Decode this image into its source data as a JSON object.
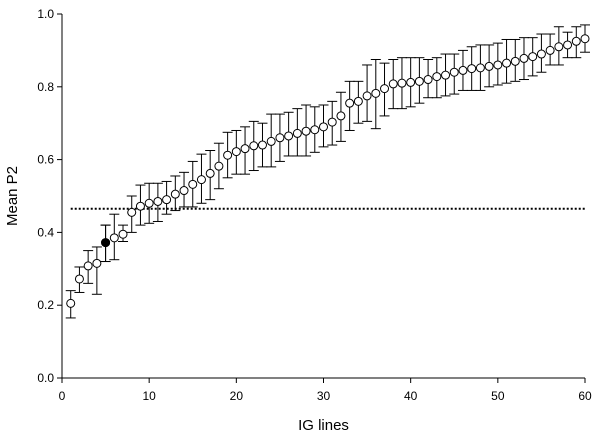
{
  "chart_data": {
    "type": "scatter",
    "xlabel": "IG lines",
    "ylabel": "Mean P2",
    "xlim": [
      0,
      60
    ],
    "ylim": [
      0.0,
      1.0
    ],
    "x_ticks": [
      0,
      10,
      20,
      30,
      40,
      50,
      60
    ],
    "y_ticks": [
      0.0,
      0.2,
      0.4,
      0.6,
      0.8,
      1.0
    ],
    "x_tick_labels": [
      "0",
      "10",
      "20",
      "30",
      "40",
      "50",
      "60"
    ],
    "y_tick_labels": [
      "0.0",
      "0.2",
      "0.4",
      "0.6",
      "0.8",
      "1.0"
    ],
    "grid": false,
    "reference_line": {
      "y": 0.465,
      "style": "dotted"
    },
    "colors": {
      "open_marker_fill": "#ffffff",
      "highlight_marker_fill": "#000000",
      "stroke": "#000000"
    },
    "series": [
      {
        "marker": "open-circle-with-error-bars",
        "x": [
          1,
          2,
          3,
          4,
          5,
          6,
          7,
          8,
          9,
          10,
          11,
          12,
          13,
          14,
          15,
          16,
          17,
          18,
          19,
          20,
          21,
          22,
          23,
          24,
          25,
          26,
          27,
          28,
          29,
          30,
          31,
          32,
          33,
          34,
          35,
          36,
          37,
          38,
          39,
          40,
          41,
          42,
          43,
          44,
          45,
          46,
          47,
          48,
          49,
          50,
          51,
          52,
          53,
          54,
          55,
          56,
          57,
          58,
          59,
          60
        ],
        "y": [
          0.205,
          0.272,
          0.308,
          0.315,
          0.372,
          0.385,
          0.395,
          0.455,
          0.472,
          0.48,
          0.485,
          0.49,
          0.505,
          0.515,
          0.532,
          0.545,
          0.562,
          0.582,
          0.612,
          0.622,
          0.63,
          0.638,
          0.64,
          0.65,
          0.66,
          0.665,
          0.672,
          0.678,
          0.682,
          0.69,
          0.703,
          0.72,
          0.755,
          0.76,
          0.775,
          0.782,
          0.795,
          0.808,
          0.81,
          0.812,
          0.815,
          0.82,
          0.828,
          0.832,
          0.84,
          0.845,
          0.85,
          0.852,
          0.856,
          0.86,
          0.865,
          0.87,
          0.878,
          0.883,
          0.89,
          0.9,
          0.91,
          0.915,
          0.925,
          0.932
        ],
        "y_lower": [
          0.165,
          0.235,
          0.26,
          0.23,
          0.32,
          0.325,
          0.375,
          0.4,
          0.42,
          0.425,
          0.43,
          0.45,
          0.46,
          0.47,
          0.47,
          0.48,
          0.49,
          0.52,
          0.55,
          0.56,
          0.56,
          0.57,
          0.58,
          0.58,
          0.595,
          0.61,
          0.61,
          0.61,
          0.62,
          0.635,
          0.64,
          0.65,
          0.68,
          0.7,
          0.705,
          0.685,
          0.72,
          0.74,
          0.74,
          0.745,
          0.755,
          0.77,
          0.77,
          0.775,
          0.78,
          0.79,
          0.79,
          0.79,
          0.8,
          0.805,
          0.81,
          0.815,
          0.82,
          0.83,
          0.84,
          0.86,
          0.86,
          0.88,
          0.88,
          0.895
        ],
        "y_upper": [
          0.24,
          0.305,
          0.35,
          0.36,
          0.42,
          0.45,
          0.42,
          0.5,
          0.53,
          0.535,
          0.535,
          0.54,
          0.555,
          0.565,
          0.595,
          0.615,
          0.625,
          0.645,
          0.675,
          0.68,
          0.69,
          0.705,
          0.7,
          0.725,
          0.725,
          0.73,
          0.74,
          0.75,
          0.745,
          0.75,
          0.76,
          0.785,
          0.815,
          0.815,
          0.86,
          0.875,
          0.865,
          0.875,
          0.88,
          0.88,
          0.88,
          0.875,
          0.88,
          0.89,
          0.89,
          0.9,
          0.91,
          0.915,
          0.915,
          0.92,
          0.93,
          0.93,
          0.935,
          0.935,
          0.945,
          0.945,
          0.965,
          0.95,
          0.965,
          0.97
        ]
      },
      {
        "marker": "filled-circle-with-error-bars",
        "x": [
          5
        ],
        "y": [
          0.372
        ],
        "y_lower": [
          0.32
        ],
        "y_upper": [
          0.42
        ]
      }
    ]
  }
}
